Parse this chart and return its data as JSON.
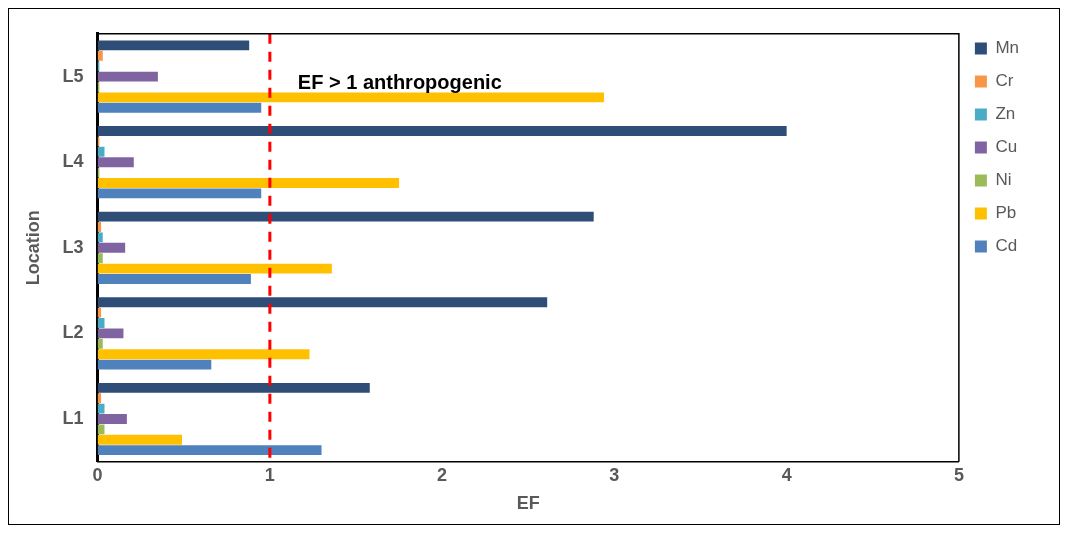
{
  "chart_data": {
    "type": "bar",
    "orientation": "horizontal",
    "xlabel": "EF",
    "ylabel": "Location",
    "categories": [
      "L5",
      "L4",
      "L3",
      "L2",
      "L1"
    ],
    "series": [
      {
        "name": "Mn",
        "color": "#2e4d77",
        "values": [
          0.88,
          4.0,
          2.88,
          2.61,
          1.58
        ]
      },
      {
        "name": "Cr",
        "color": "#f79646",
        "values": [
          0.03,
          0.01,
          0.02,
          0.02,
          0.02
        ]
      },
      {
        "name": "Zn",
        "color": "#4bacc6",
        "values": [
          0.01,
          0.04,
          0.03,
          0.04,
          0.04
        ]
      },
      {
        "name": "Cu",
        "color": "#8064a2",
        "values": [
          0.35,
          0.21,
          0.16,
          0.15,
          0.17
        ]
      },
      {
        "name": "Ni",
        "color": "#9bbb59",
        "values": [
          0.01,
          0.01,
          0.03,
          0.03,
          0.04
        ]
      },
      {
        "name": "Pb",
        "color": "#ffc000",
        "values": [
          2.94,
          1.75,
          1.36,
          1.23,
          0.49
        ]
      },
      {
        "name": "Cd",
        "color": "#4f81bd",
        "values": [
          0.95,
          0.95,
          0.89,
          0.66,
          1.3
        ]
      }
    ],
    "xlim": [
      0,
      5
    ],
    "xticks": [
      0,
      1,
      2,
      3,
      4,
      5
    ],
    "ref_lines": [
      {
        "axis": "x",
        "value": 1,
        "label": "EF > 1 anthropogenic",
        "color": "#ff0000",
        "line_style": "dashed"
      }
    ],
    "legend": "right",
    "grid": false
  }
}
